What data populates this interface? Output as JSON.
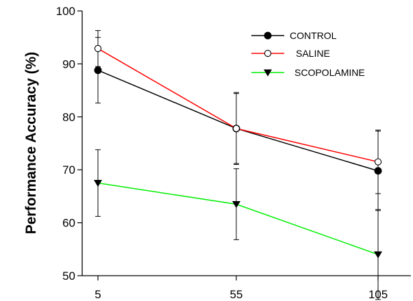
{
  "chart_data": {
    "type": "line",
    "title": "",
    "xlabel": "",
    "ylabel": "Performance Accuracy (%)",
    "ylim": [
      50,
      100
    ],
    "yticks": [
      50,
      60,
      70,
      80,
      90,
      100
    ],
    "x": [
      5,
      55,
      105
    ],
    "xtick_labels": [
      "5",
      "55",
      "105"
    ],
    "grid": false,
    "legend_position": "top-right",
    "series": [
      {
        "name": "CONTROL",
        "color": "#000000",
        "marker": "filled-circle",
        "values": [
          88.8,
          77.8,
          69.8
        ],
        "errors": [
          6.2,
          6.8,
          7.5
        ]
      },
      {
        "name": "SALINE",
        "color": "#ff0000",
        "marker": "open-circle",
        "values": [
          92.9,
          77.8,
          71.5
        ],
        "errors": [
          3.4,
          6.6,
          6.0
        ]
      },
      {
        "name": "SCOPOLAMINE",
        "color": "#00ee00",
        "marker": "filled-triangle-down",
        "values": [
          67.5,
          63.5,
          54.0
        ],
        "errors": [
          6.3,
          6.7,
          8.5
        ]
      }
    ]
  }
}
